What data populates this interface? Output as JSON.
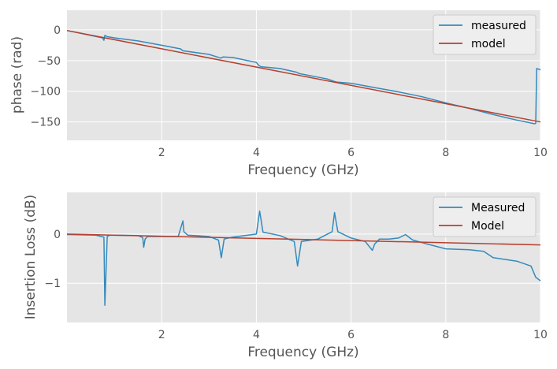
{
  "colors": {
    "measured": "#348ABD",
    "model": "#B5402F",
    "axes_bg": "#E5E5E5",
    "grid": "#FFFFFF",
    "legend_bg": "#EEEEEE"
  },
  "chart_data": [
    {
      "type": "line",
      "xlabel": "Frequency (GHz)",
      "ylabel": "phase (rad)",
      "xlim": [
        0,
        10
      ],
      "ylim": [
        -180,
        32
      ],
      "xticks": [
        "2",
        "4",
        "6",
        "8",
        "10"
      ],
      "yticks": [
        "0",
        "−50",
        "−100",
        "−150"
      ],
      "grid": true,
      "legend_position": "top-right",
      "series": [
        {
          "name": "measured",
          "x": [
            0,
            0.5,
            0.75,
            0.78,
            0.8,
            0.85,
            1.0,
            1.5,
            2.0,
            2.4,
            2.45,
            3.0,
            3.25,
            3.3,
            3.5,
            4.0,
            4.05,
            4.1,
            4.5,
            4.85,
            4.9,
            5.5,
            5.65,
            5.7,
            6.0,
            6.5,
            7.0,
            7.5,
            8.0,
            8.5,
            9.0,
            9.5,
            9.88,
            9.9,
            9.92,
            10.0
          ],
          "y": [
            -1,
            -9,
            -13,
            -17,
            -9,
            -11,
            -13,
            -18,
            -25,
            -31,
            -34,
            -40,
            -46,
            -44,
            -45,
            -53,
            -58,
            -60,
            -63,
            -69,
            -71,
            -80,
            -84,
            -85,
            -87,
            -94,
            -101,
            -109,
            -119,
            -128,
            -138,
            -147,
            -153,
            -152,
            -63,
            -65
          ]
        },
        {
          "name": "model",
          "x": [
            0,
            10
          ],
          "y": [
            -1,
            -150
          ]
        }
      ]
    },
    {
      "type": "line",
      "xlabel": "Frequency (GHz)",
      "ylabel": "Insertion Loss (dB)",
      "xlim": [
        0,
        10
      ],
      "ylim": [
        -1.8,
        0.85
      ],
      "xticks": [
        "2",
        "4",
        "6",
        "8",
        "10"
      ],
      "yticks": [
        "0",
        "−1"
      ],
      "grid": true,
      "legend_position": "top-right",
      "series": [
        {
          "name": "Measured",
          "x": [
            0,
            0.6,
            0.78,
            0.8,
            0.82,
            0.85,
            0.9,
            1.5,
            1.6,
            1.62,
            1.65,
            1.7,
            2.0,
            2.35,
            2.45,
            2.47,
            2.55,
            3.0,
            3.2,
            3.26,
            3.32,
            3.5,
            4.0,
            4.07,
            4.14,
            4.5,
            4.8,
            4.87,
            4.95,
            5.3,
            5.6,
            5.65,
            5.72,
            6.0,
            6.3,
            6.45,
            6.5,
            6.6,
            6.8,
            7.0,
            7.15,
            7.3,
            7.6,
            8.0,
            8.5,
            8.8,
            9.0,
            9.5,
            9.8,
            9.9,
            10.0
          ],
          "y": [
            -0.01,
            -0.02,
            -0.06,
            -1.45,
            -0.9,
            -0.05,
            -0.02,
            -0.03,
            -0.07,
            -0.27,
            -0.1,
            -0.05,
            -0.05,
            -0.05,
            0.27,
            0.05,
            -0.02,
            -0.05,
            -0.12,
            -0.48,
            -0.1,
            -0.06,
            0.0,
            0.47,
            0.04,
            -0.03,
            -0.15,
            -0.65,
            -0.15,
            -0.1,
            0.05,
            0.44,
            0.05,
            -0.08,
            -0.15,
            -0.33,
            -0.2,
            -0.1,
            -0.1,
            -0.08,
            -0.01,
            -0.12,
            -0.2,
            -0.3,
            -0.32,
            -0.35,
            -0.48,
            -0.55,
            -0.65,
            -0.88,
            -0.95
          ]
        },
        {
          "name": "Model",
          "x": [
            0,
            10
          ],
          "y": [
            0.0,
            -0.22
          ]
        }
      ]
    }
  ]
}
